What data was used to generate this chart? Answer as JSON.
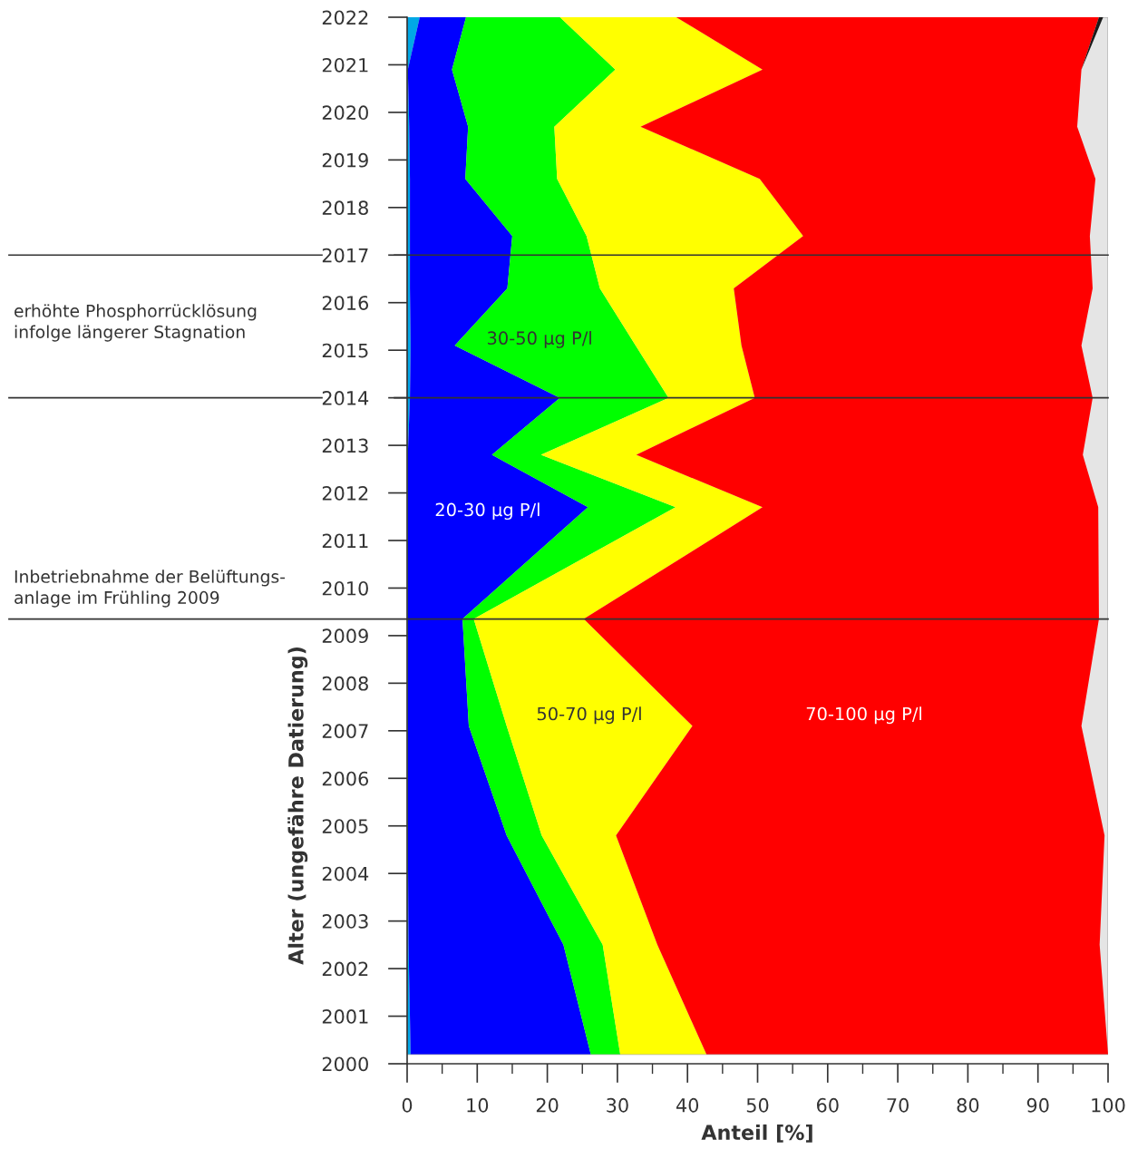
{
  "chart_data": {
    "type": "area",
    "orientation": "horizontal",
    "stacked": true,
    "xlabel": "Anteil [%]",
    "ylabel": "Alter (ungefähre Datierung)",
    "x": [
      2000.2,
      2002.5,
      2004.8,
      2007.1,
      2009.35,
      2011.7,
      2012.8,
      2014.0,
      2015.1,
      2016.3,
      2017.4,
      2018.6,
      2019.7,
      2020.9,
      2022.0
    ],
    "series": [
      {
        "color": "#00a8e6",
        "values": [
          0.5,
          0.2,
          0.1,
          0.1,
          0.1,
          0.1,
          0.1,
          0.4,
          0.5,
          0.4,
          0.4,
          0.4,
          0.3,
          0.1,
          1.8
        ]
      },
      {
        "name": "20-30 µg P/l",
        "color": "#0000ff",
        "values": [
          25.7,
          22.1,
          14.1,
          8.7,
          7.8,
          25.7,
          12.0,
          21.4,
          6.3,
          13.9,
          14.6,
          7.9,
          8.4,
          6.3,
          6.6
        ]
      },
      {
        "name": "30-50 µg P/l",
        "color": "#00ff00",
        "values": [
          4.2,
          5.6,
          5.0,
          5.4,
          1.6,
          12.5,
          7.0,
          15.5,
          25.8,
          13.2,
          10.6,
          13.1,
          12.3,
          23.3,
          13.4
        ]
      },
      {
        "name": "50-70 µg P/l",
        "color": "#ffff00",
        "values": [
          12.3,
          7.8,
          10.6,
          26.5,
          15.7,
          12.4,
          13.6,
          12.3,
          15.1,
          19.1,
          30.9,
          28.9,
          12.3,
          21.0,
          16.6
        ]
      },
      {
        "name": "70-100 µg P/l",
        "color": "#ff0000",
        "values": [
          57.3,
          63.1,
          69.7,
          55.5,
          73.5,
          47.9,
          63.7,
          48.2,
          48.5,
          51.2,
          40.9,
          47.9,
          62.3,
          45.5,
          60.3
        ]
      },
      {
        "color": "#1a1a1a",
        "values": [
          0,
          0,
          0,
          0,
          0,
          0,
          0,
          0,
          0,
          0,
          0,
          0,
          0,
          0,
          0.6
        ]
      }
    ],
    "bands": [
      {
        "axis": "y",
        "from": 2000.2,
        "to": 2022,
        "color": "#e5e5e5"
      }
    ],
    "xlim": [
      0,
      100
    ],
    "xticks": [
      0,
      {
        "value": 5,
        "label": null
      },
      10,
      {
        "value": 15,
        "label": null
      },
      20,
      {
        "value": 25,
        "label": null
      },
      30,
      {
        "value": 35,
        "label": null
      },
      40,
      {
        "value": 45,
        "label": null
      },
      50,
      {
        "value": 55,
        "label": null
      },
      60,
      {
        "value": 65,
        "label": null
      },
      70,
      {
        "value": 75,
        "label": null
      },
      80,
      {
        "value": 85,
        "label": null
      },
      90,
      {
        "value": 95,
        "label": null
      },
      100
    ],
    "ylim": [
      2000,
      2022
    ],
    "yticks": [
      2000,
      2001,
      2002,
      2003,
      2004,
      2005,
      2006,
      2007,
      2008,
      2009,
      2010,
      2011,
      2012,
      2013,
      2014,
      2015,
      2016,
      2017,
      2018,
      2019,
      2020,
      2021,
      2022
    ],
    "ref_lines": [
      {
        "axis": "y",
        "value": 2017,
        "color": "#333333"
      },
      {
        "axis": "y",
        "value": 2014,
        "color": "#333333"
      },
      {
        "axis": "y",
        "value": 2009.35,
        "color": "#333333"
      }
    ],
    "annotations": [
      "erhöhte Phosphorrücklösung\ninfolge längerer Stagnation",
      "Inbetriebnahme der Belüftungs-\nanlage im Frühling 2009"
    ]
  }
}
